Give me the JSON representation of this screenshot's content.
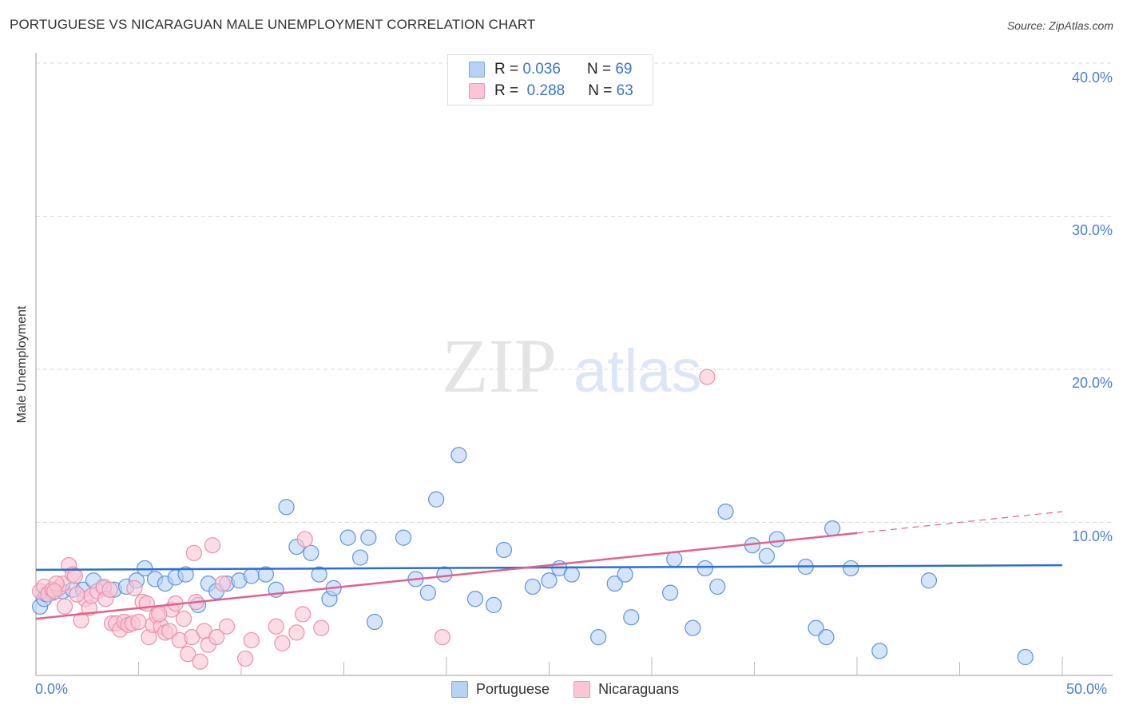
{
  "header": {
    "title": "PORTUGUESE VS NICARAGUAN MALE UNEMPLOYMENT CORRELATION CHART",
    "source": "Source: ZipAtlas.com"
  },
  "watermark": {
    "zip": "ZIP",
    "atlas": "atlas"
  },
  "legend": {
    "rows": [
      {
        "r_label": "R =",
        "r_value": "0.036",
        "n_label": "N =",
        "n_value": "69",
        "color": "#b8d2f5"
      },
      {
        "r_label": "R =",
        "r_value": "0.288",
        "n_label": "N =",
        "n_value": "63",
        "color": "#fac6d6"
      }
    ]
  },
  "bottom_legend": [
    {
      "label": "Portuguese",
      "color": "#b8d2f5"
    },
    {
      "label": "Nicaraguans",
      "color": "#fac6d6"
    }
  ],
  "axes": {
    "y_label": "Male Unemployment",
    "y_ticks": [
      "40.0%",
      "30.0%",
      "20.0%",
      "10.0%"
    ],
    "x_ticks": {
      "left": "0.0%",
      "right": "50.0%"
    }
  },
  "colors": {
    "blue_fill": "#b8d2f5",
    "blue_stroke": "#5f93dc",
    "blue_line": "#2a6fd6",
    "pink_fill": "#fac6d6",
    "pink_stroke": "#eb8fad",
    "pink_line": "#e5608c",
    "tick_label": "#4a7fd0"
  },
  "chart_data": {
    "type": "scatter",
    "title": "PORTUGUESE VS NICARAGUAN MALE UNEMPLOYMENT CORRELATION CHART",
    "xlabel": "",
    "ylabel": "Male Unemployment",
    "xlim": [
      0,
      50
    ],
    "ylim": [
      0,
      40
    ],
    "x_tick_labels": [
      "0.0%",
      "50.0%"
    ],
    "y_tick_labels": [
      "10.0%",
      "20.0%",
      "30.0%",
      "40.0%"
    ],
    "grid": "horizontal dashed",
    "legend_position": "top-center",
    "series": [
      {
        "name": "Portuguese",
        "R": 0.036,
        "N": 69,
        "trend": {
          "x": [
            0,
            50
          ],
          "y": [
            6.9,
            7.2
          ]
        },
        "points": [
          [
            0.2,
            4.5
          ],
          [
            0.4,
            5.0
          ],
          [
            0.8,
            5.4
          ],
          [
            1.3,
            5.5
          ],
          [
            1.8,
            5.6
          ],
          [
            2.3,
            5.6
          ],
          [
            2.8,
            6.2
          ],
          [
            3.3,
            5.7
          ],
          [
            3.8,
            5.6
          ],
          [
            4.4,
            5.8
          ],
          [
            4.9,
            6.2
          ],
          [
            5.3,
            7.0
          ],
          [
            5.8,
            6.3
          ],
          [
            6.3,
            6.0
          ],
          [
            6.8,
            6.4
          ],
          [
            7.3,
            6.6
          ],
          [
            7.9,
            4.6
          ],
          [
            8.4,
            6.0
          ],
          [
            8.8,
            5.5
          ],
          [
            9.3,
            6.0
          ],
          [
            9.9,
            6.2
          ],
          [
            10.5,
            6.5
          ],
          [
            11.2,
            6.6
          ],
          [
            11.7,
            5.6
          ],
          [
            12.2,
            11.0
          ],
          [
            12.7,
            8.4
          ],
          [
            13.4,
            8.0
          ],
          [
            13.8,
            6.6
          ],
          [
            14.3,
            5.0
          ],
          [
            14.5,
            5.7
          ],
          [
            15.2,
            9.0
          ],
          [
            15.8,
            7.7
          ],
          [
            16.2,
            9.0
          ],
          [
            16.5,
            3.5
          ],
          [
            17.9,
            9.0
          ],
          [
            18.5,
            6.3
          ],
          [
            19.1,
            5.4
          ],
          [
            19.5,
            11.5
          ],
          [
            19.9,
            6.6
          ],
          [
            20.6,
            14.4
          ],
          [
            21.4,
            5.0
          ],
          [
            22.3,
            4.6
          ],
          [
            22.8,
            8.2
          ],
          [
            24.2,
            5.8
          ],
          [
            25.0,
            6.2
          ],
          [
            25.5,
            7.0
          ],
          [
            26.1,
            6.6
          ],
          [
            27.4,
            2.5
          ],
          [
            28.2,
            6.0
          ],
          [
            28.7,
            6.6
          ],
          [
            29.0,
            3.8
          ],
          [
            30.9,
            5.4
          ],
          [
            31.1,
            7.6
          ],
          [
            32.0,
            3.1
          ],
          [
            32.6,
            7.0
          ],
          [
            33.2,
            5.8
          ],
          [
            33.6,
            10.7
          ],
          [
            34.9,
            8.5
          ],
          [
            35.6,
            7.8
          ],
          [
            36.1,
            8.9
          ],
          [
            37.5,
            7.1
          ],
          [
            38.0,
            3.1
          ],
          [
            38.5,
            2.5
          ],
          [
            38.8,
            9.6
          ],
          [
            39.7,
            7.0
          ],
          [
            41.1,
            1.6
          ],
          [
            43.5,
            6.2
          ],
          [
            48.2,
            1.2
          ],
          [
            0.5,
            5.3
          ]
        ]
      },
      {
        "name": "Nicaraguans",
        "R": 0.288,
        "N": 63,
        "trend": {
          "x": [
            0,
            40
          ],
          "y": [
            3.7,
            9.3
          ],
          "dashed_to": {
            "x": 50,
            "y": 10.7
          }
        },
        "points": [
          [
            0.2,
            5.5
          ],
          [
            0.4,
            5.8
          ],
          [
            0.6,
            5.3
          ],
          [
            0.8,
            5.6
          ],
          [
            1.1,
            5.7
          ],
          [
            1.3,
            6.0
          ],
          [
            1.4,
            4.5
          ],
          [
            1.6,
            7.2
          ],
          [
            1.8,
            6.6
          ],
          [
            1.9,
            6.5
          ],
          [
            2.2,
            3.6
          ],
          [
            2.4,
            5.0
          ],
          [
            2.6,
            4.4
          ],
          [
            2.7,
            5.2
          ],
          [
            3.0,
            5.5
          ],
          [
            3.3,
            5.8
          ],
          [
            3.4,
            5.0
          ],
          [
            3.7,
            3.4
          ],
          [
            3.9,
            3.4
          ],
          [
            4.1,
            3.0
          ],
          [
            4.3,
            3.5
          ],
          [
            4.5,
            3.3
          ],
          [
            4.7,
            3.4
          ],
          [
            5.0,
            3.5
          ],
          [
            5.2,
            4.8
          ],
          [
            5.4,
            4.7
          ],
          [
            5.5,
            2.5
          ],
          [
            5.7,
            3.3
          ],
          [
            5.9,
            3.9
          ],
          [
            6.1,
            3.2
          ],
          [
            6.3,
            2.8
          ],
          [
            6.5,
            2.9
          ],
          [
            6.6,
            4.3
          ],
          [
            6.8,
            4.7
          ],
          [
            7.0,
            2.3
          ],
          [
            7.2,
            3.7
          ],
          [
            7.4,
            1.4
          ],
          [
            7.6,
            2.5
          ],
          [
            7.7,
            8.0
          ],
          [
            7.8,
            4.8
          ],
          [
            8.0,
            0.9
          ],
          [
            8.2,
            2.9
          ],
          [
            8.4,
            2.0
          ],
          [
            8.6,
            8.5
          ],
          [
            8.8,
            2.5
          ],
          [
            9.1,
            6.0
          ],
          [
            9.3,
            3.2
          ],
          [
            10.2,
            1.1
          ],
          [
            10.5,
            2.3
          ],
          [
            11.7,
            3.2
          ],
          [
            12.0,
            2.1
          ],
          [
            12.7,
            2.8
          ],
          [
            13.0,
            4.0
          ],
          [
            13.1,
            8.9
          ],
          [
            13.9,
            3.1
          ],
          [
            19.8,
            2.5
          ],
          [
            32.7,
            19.5
          ],
          [
            4.8,
            5.7
          ],
          [
            1.0,
            6.0
          ],
          [
            0.9,
            5.5
          ],
          [
            2.0,
            5.3
          ],
          [
            6.0,
            4.0
          ],
          [
            3.6,
            5.6
          ]
        ]
      }
    ]
  }
}
